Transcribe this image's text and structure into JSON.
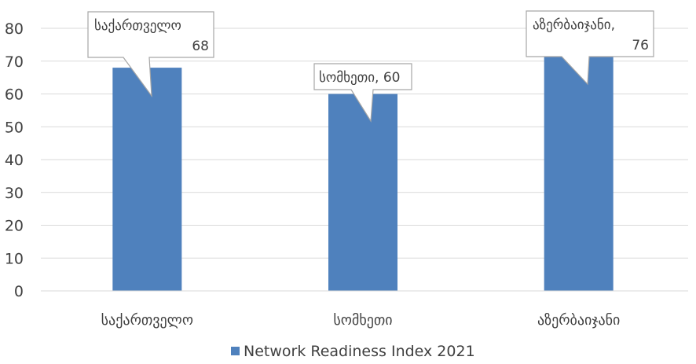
{
  "chart_data": {
    "type": "bar",
    "categories": [
      "საქართველო",
      "სომხეთი",
      "აზერბაიჯანი"
    ],
    "series": [
      {
        "name": "Network Readiness Index 2021",
        "values": [
          68,
          60,
          76
        ],
        "color": "#4f81bd"
      }
    ],
    "ylim": [
      0,
      80
    ],
    "yticks": [
      0,
      10,
      20,
      30,
      40,
      50,
      60,
      70,
      80
    ],
    "grid": true,
    "legend_position": "bottom",
    "callouts": [
      {
        "lines": [
          "საქართველო",
          "68"
        ]
      },
      {
        "lines": [
          "სომხეთი, 60"
        ]
      },
      {
        "lines": [
          "აზერბაიჯანი,",
          "76"
        ]
      }
    ]
  }
}
